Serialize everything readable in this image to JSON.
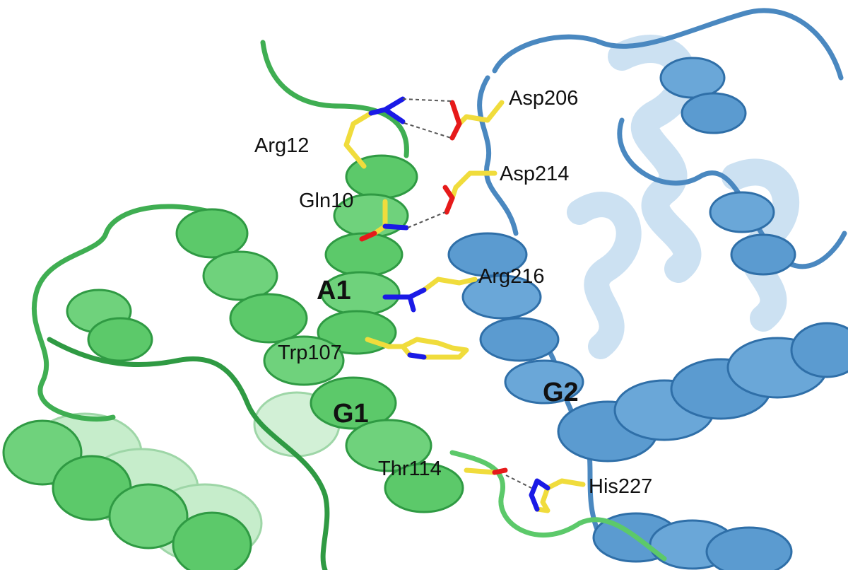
{
  "colors": {
    "background": "#ffffff",
    "chain_a": "#5cc96a",
    "chain_a_dark": "#2f9a43",
    "chain_b": "#5b9bd0",
    "chain_b_dark": "#2f6fa8",
    "carbon": "#f0dc3c",
    "nitrogen": "#1a1ae6",
    "oxygen": "#e61a1a",
    "hbond": "#555555",
    "text": "#111111"
  },
  "residues": {
    "arg12": "Arg12",
    "gln10": "Gln10",
    "asp206": "Asp206",
    "asp214": "Asp214",
    "arg216": "Arg216",
    "trp107": "Trp107",
    "thr114": "Thr114",
    "his227": "His227"
  },
  "helices": {
    "a1": "A1",
    "g1": "G1",
    "g2": "G2"
  }
}
